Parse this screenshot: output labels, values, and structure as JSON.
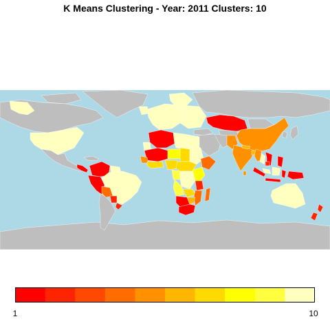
{
  "title": "K Means Clustering - Year: 2011 Clusters: 10",
  "legend": {
    "min_label": "1",
    "max_label": "10",
    "colors": [
      "#ff0000",
      "#ff2400",
      "#ff4800",
      "#ff6d00",
      "#ff9100",
      "#ffb600",
      "#ffda00",
      "#ffff00",
      "#ffff40",
      "#ffffbf"
    ]
  },
  "colors": {
    "ocean": "#add8e6",
    "no_data_land": "#bebebe",
    "border": "#ffffff"
  }
}
